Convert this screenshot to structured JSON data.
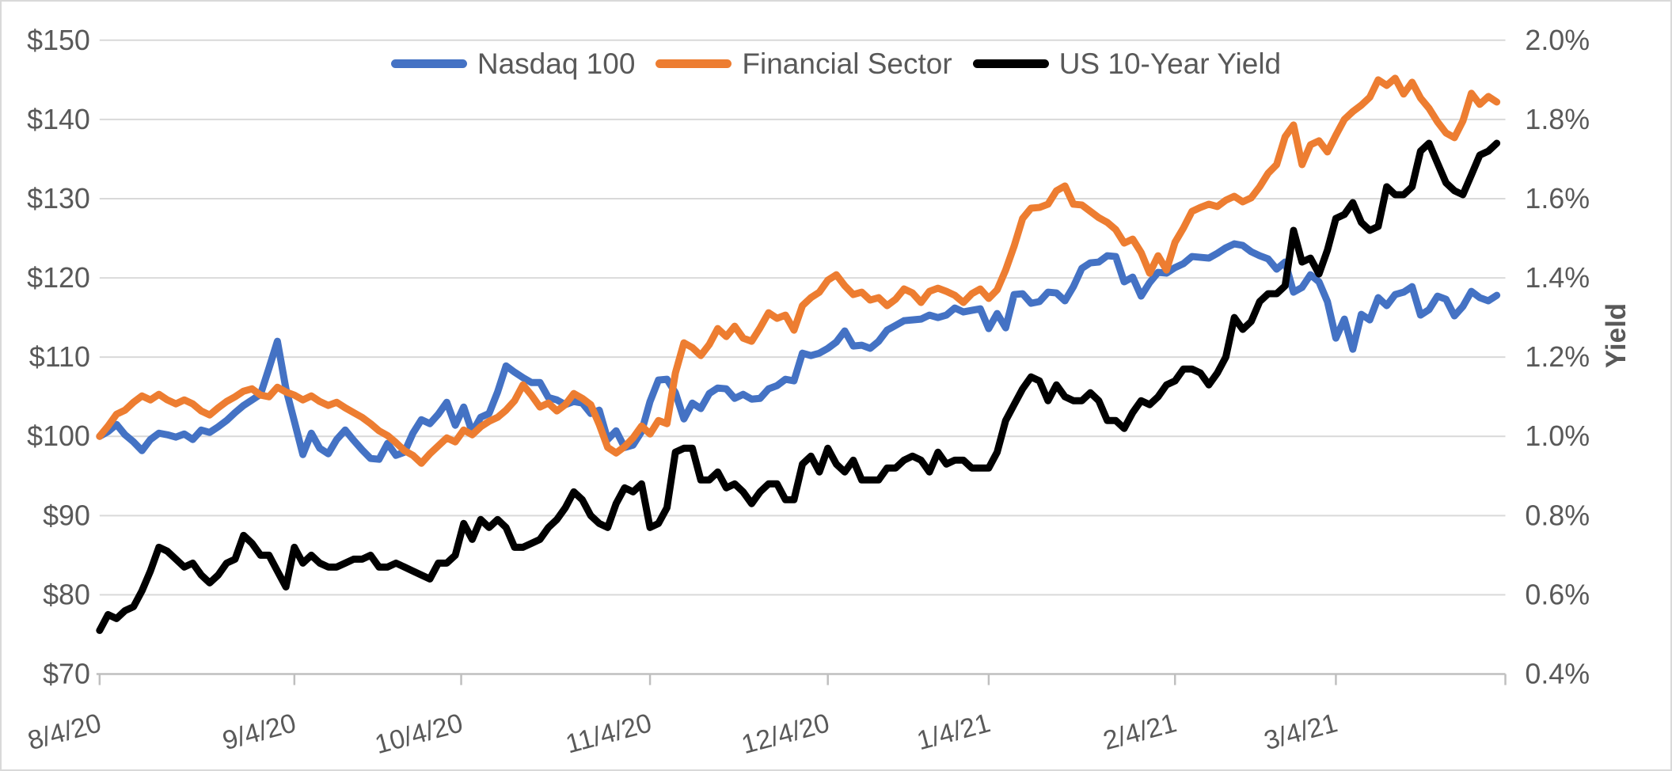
{
  "accent_colors": {
    "grid": "#d9d9d9",
    "axis_line": "#bfbfbf",
    "text": "#595959"
  },
  "chart_data": {
    "type": "line",
    "title": "",
    "xlabel": "",
    "grid": "horizontal-only",
    "legend_position": "top-center",
    "x_unit": "trading-day (8/4/20 – 3/31/21)",
    "x_ticks": {
      "labels": [
        "8/4/20",
        "9/4/20",
        "10/4/20",
        "11/4/20",
        "12/4/20",
        "1/4/21",
        "2/4/21",
        "3/4/21"
      ],
      "day_positions": [
        0,
        23,
        42.7,
        65,
        86,
        105,
        127,
        146
      ]
    },
    "left_axis": {
      "labels": [
        "$150",
        "$140",
        "$130",
        "$120",
        "$110",
        "$100",
        "$90",
        "$80",
        "$70"
      ],
      "values": [
        150,
        140,
        130,
        120,
        110,
        100,
        90,
        80,
        70
      ],
      "min": 70,
      "max": 150
    },
    "right_axis": {
      "title": "Yield",
      "labels": [
        "2.0%",
        "1.8%",
        "1.6%",
        "1.4%",
        "1.2%",
        "1.0%",
        "0.8%",
        "0.6%",
        "0.4%"
      ],
      "values": [
        2.0,
        1.8,
        1.6,
        1.4,
        1.2,
        1.0,
        0.8,
        0.6,
        0.4
      ],
      "min": 0.4,
      "max": 2.0
    },
    "series": [
      {
        "name": "Nasdaq 100",
        "color": "#4472C4",
        "axis": "left",
        "values": [
          100.0,
          100.6,
          101.5,
          100.2,
          99.3,
          98.2,
          99.6,
          100.4,
          100.2,
          99.9,
          100.3,
          99.6,
          100.8,
          100.5,
          101.2,
          102.0,
          103.0,
          103.9,
          104.6,
          105.3,
          108.6,
          112.0,
          106.0,
          101.9,
          97.7,
          100.4,
          98.5,
          97.8,
          99.6,
          100.8,
          99.5,
          98.3,
          97.2,
          97.1,
          99.1,
          97.6,
          98.0,
          100.4,
          102.1,
          101.6,
          102.8,
          104.3,
          101.4,
          103.7,
          100.5,
          102.4,
          102.9,
          105.6,
          108.9,
          108.1,
          107.4,
          106.8,
          106.8,
          104.9,
          104.6,
          104.0,
          104.4,
          104.2,
          102.9,
          103.3,
          99.6,
          100.7,
          98.6,
          98.9,
          100.6,
          104.4,
          107.1,
          107.2,
          105.5,
          102.2,
          104.2,
          103.5,
          105.4,
          106.1,
          106.0,
          104.8,
          105.3,
          104.7,
          104.8,
          106.0,
          106.4,
          107.2,
          107.0,
          110.5,
          110.2,
          110.5,
          111.1,
          111.9,
          113.3,
          111.4,
          111.5,
          111.1,
          112.0,
          113.4,
          114.0,
          114.6,
          114.7,
          114.8,
          115.3,
          115.0,
          115.3,
          116.2,
          115.7,
          115.9,
          116.1,
          113.6,
          115.5,
          113.7,
          117.9,
          118.0,
          116.8,
          117.0,
          118.2,
          118.1,
          117.1,
          118.9,
          121.2,
          121.9,
          122.0,
          122.8,
          122.7,
          119.5,
          120.1,
          117.7,
          119.4,
          120.7,
          120.6,
          121.3,
          121.8,
          122.7,
          122.6,
          122.5,
          123.1,
          123.8,
          124.3,
          124.1,
          123.3,
          122.8,
          122.4,
          121.1,
          122.0,
          118.2,
          118.8,
          120.4,
          119.5,
          117.0,
          112.4,
          114.8,
          111.0,
          115.4,
          114.7,
          117.5,
          116.5,
          117.9,
          118.2,
          118.9,
          115.3,
          116.0,
          117.7,
          117.3,
          115.2,
          116.4,
          118.3,
          117.5,
          117.1,
          117.8
        ]
      },
      {
        "name": "Financial Sector",
        "color": "#ED7D31",
        "axis": "left",
        "values": [
          100.0,
          101.3,
          102.8,
          103.3,
          104.3,
          105.1,
          104.6,
          105.3,
          104.6,
          104.1,
          104.6,
          104.1,
          103.2,
          102.7,
          103.6,
          104.4,
          105.0,
          105.7,
          106.0,
          105.2,
          105.0,
          106.2,
          105.6,
          105.2,
          104.6,
          105.1,
          104.4,
          103.9,
          104.3,
          103.6,
          103.0,
          102.4,
          101.6,
          100.7,
          100.1,
          99.2,
          98.2,
          97.6,
          96.6,
          97.8,
          98.8,
          99.8,
          99.3,
          100.8,
          100.2,
          101.2,
          101.9,
          102.4,
          103.3,
          104.5,
          106.5,
          105.2,
          103.7,
          104.2,
          103.2,
          104.0,
          105.4,
          104.8,
          104.0,
          101.5,
          98.6,
          97.9,
          98.7,
          99.8,
          101.3,
          100.3,
          102.0,
          101.6,
          108.0,
          111.8,
          111.2,
          110.2,
          111.6,
          113.6,
          112.6,
          113.9,
          112.4,
          112.0,
          113.7,
          115.6,
          114.9,
          115.3,
          113.4,
          116.5,
          117.5,
          118.2,
          119.7,
          120.4,
          119.0,
          117.9,
          118.2,
          117.2,
          117.5,
          116.5,
          117.3,
          118.6,
          118.1,
          116.9,
          118.3,
          118.7,
          118.3,
          117.8,
          116.9,
          118.0,
          118.6,
          117.4,
          118.5,
          121.0,
          124.0,
          127.5,
          128.8,
          128.9,
          129.3,
          131.0,
          131.6,
          129.3,
          129.2,
          128.4,
          127.6,
          127.0,
          126.1,
          124.4,
          124.9,
          123.2,
          120.6,
          122.8,
          121.0,
          124.5,
          126.3,
          128.4,
          128.9,
          129.3,
          129.0,
          129.8,
          130.3,
          129.6,
          130.1,
          131.5,
          133.2,
          134.3,
          137.8,
          139.3,
          134.3,
          136.8,
          137.3,
          135.9,
          138.0,
          140.0,
          141.0,
          141.8,
          142.8,
          145.0,
          144.3,
          145.2,
          143.2,
          144.7,
          142.7,
          141.4,
          139.7,
          138.3,
          137.7,
          139.8,
          143.3,
          141.9,
          142.9,
          142.2
        ]
      },
      {
        "name": "US 10-Year Yield",
        "color": "#000000",
        "axis": "right",
        "values": [
          0.51,
          0.55,
          0.54,
          0.56,
          0.57,
          0.61,
          0.66,
          0.72,
          0.71,
          0.69,
          0.67,
          0.68,
          0.65,
          0.63,
          0.65,
          0.68,
          0.69,
          0.75,
          0.73,
          0.7,
          0.7,
          0.66,
          0.62,
          0.72,
          0.68,
          0.7,
          0.68,
          0.67,
          0.67,
          0.68,
          0.69,
          0.69,
          0.7,
          0.67,
          0.67,
          0.68,
          0.67,
          0.66,
          0.65,
          0.64,
          0.68,
          0.68,
          0.7,
          0.78,
          0.74,
          0.79,
          0.77,
          0.79,
          0.77,
          0.72,
          0.72,
          0.73,
          0.74,
          0.77,
          0.79,
          0.82,
          0.86,
          0.84,
          0.8,
          0.78,
          0.77,
          0.83,
          0.87,
          0.86,
          0.88,
          0.77,
          0.78,
          0.82,
          0.96,
          0.97,
          0.97,
          0.89,
          0.89,
          0.91,
          0.87,
          0.88,
          0.86,
          0.83,
          0.86,
          0.88,
          0.88,
          0.84,
          0.84,
          0.93,
          0.95,
          0.91,
          0.97,
          0.93,
          0.91,
          0.94,
          0.89,
          0.89,
          0.89,
          0.92,
          0.92,
          0.94,
          0.95,
          0.94,
          0.91,
          0.96,
          0.93,
          0.94,
          0.94,
          0.92,
          0.92,
          0.92,
          0.96,
          1.04,
          1.08,
          1.12,
          1.15,
          1.14,
          1.09,
          1.13,
          1.1,
          1.09,
          1.09,
          1.11,
          1.09,
          1.04,
          1.04,
          1.02,
          1.06,
          1.09,
          1.08,
          1.1,
          1.13,
          1.14,
          1.17,
          1.17,
          1.16,
          1.13,
          1.16,
          1.2,
          1.3,
          1.27,
          1.29,
          1.34,
          1.36,
          1.36,
          1.38,
          1.52,
          1.44,
          1.45,
          1.41,
          1.47,
          1.55,
          1.56,
          1.59,
          1.54,
          1.52,
          1.53,
          1.63,
          1.61,
          1.61,
          1.63,
          1.72,
          1.74,
          1.69,
          1.64,
          1.62,
          1.61,
          1.66,
          1.71,
          1.72,
          1.74
        ]
      }
    ]
  }
}
